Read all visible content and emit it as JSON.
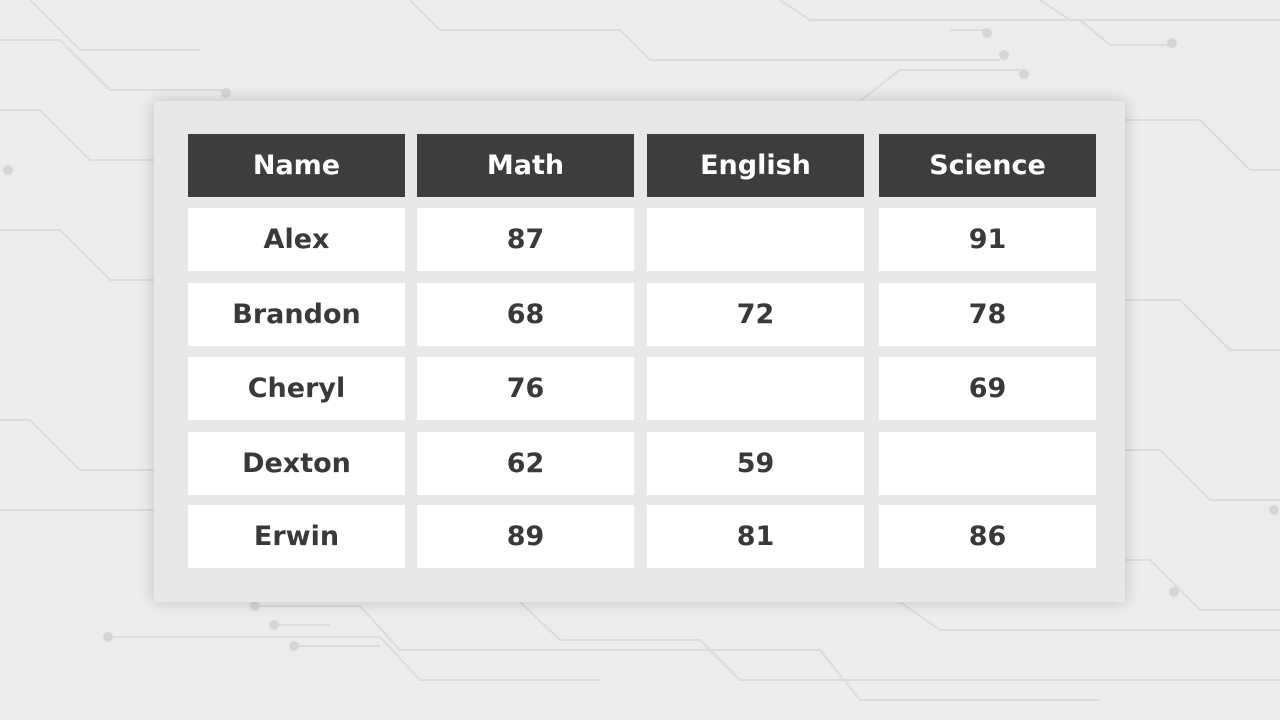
{
  "table": {
    "header": [
      "Name",
      "Math",
      "English",
      "Science"
    ],
    "rows": [
      [
        "Alex",
        87,
        null,
        91
      ],
      [
        "Brandon",
        68,
        72,
        78
      ],
      [
        "Cheryl",
        76,
        null,
        69
      ],
      [
        "Dexton",
        62,
        59,
        null
      ],
      [
        "Erwin",
        89,
        81,
        86
      ]
    ]
  }
}
